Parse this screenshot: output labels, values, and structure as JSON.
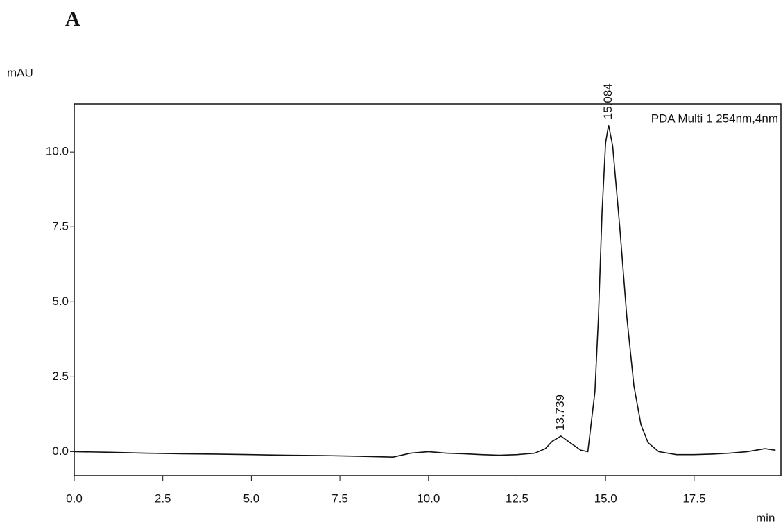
{
  "chart_data": {
    "type": "line",
    "title": "A",
    "y_label": "mAU",
    "x_label": "min",
    "x": [
      0,
      1,
      2,
      3,
      4,
      5,
      6,
      7,
      8,
      9,
      9.5,
      10,
      10.5,
      11,
      11.5,
      12,
      12.5,
      13,
      13.3,
      13.5,
      13.739,
      14,
      14.3,
      14.5,
      14.7,
      14.8,
      14.9,
      15.0,
      15.084,
      15.2,
      15.4,
      15.6,
      15.8,
      16.0,
      16.2,
      16.5,
      17,
      17.5,
      18,
      18.5,
      19,
      19.5,
      19.8
    ],
    "series": [
      {
        "name": "PDA Multi 1 254nm,4nm",
        "color": "#111111",
        "values": [
          0,
          -0.02,
          -0.05,
          -0.07,
          -0.08,
          -0.1,
          -0.12,
          -0.13,
          -0.15,
          -0.18,
          -0.05,
          0.0,
          -0.05,
          -0.07,
          -0.1,
          -0.12,
          -0.1,
          -0.05,
          0.1,
          0.35,
          0.52,
          0.3,
          0.05,
          0.0,
          2.0,
          4.5,
          8.0,
          10.3,
          10.9,
          10.2,
          7.5,
          4.5,
          2.2,
          0.9,
          0.3,
          0.0,
          -0.1,
          -0.1,
          -0.08,
          -0.05,
          0.0,
          0.1,
          0.05
        ]
      }
    ],
    "annotations": [
      {
        "text": "13.739",
        "x": 13.739,
        "y": 0.52
      },
      {
        "text": "15.084",
        "x": 15.084,
        "y": 10.9
      }
    ],
    "xlim": [
      0,
      19.95
    ],
    "ylim": [
      -0.8,
      11.6
    ],
    "xticks": [
      {
        "value": 0,
        "label": "0.0"
      },
      2.5,
      {
        "value": 5,
        "label": "5.0"
      },
      7.5,
      {
        "value": 10,
        "label": "10.0"
      },
      12.5,
      {
        "value": 15,
        "label": "15.0"
      },
      17.5
    ],
    "yticks": [
      {
        "value": 0,
        "label": "0.0"
      },
      2.5,
      {
        "value": 5,
        "label": "5.0"
      },
      7.5,
      {
        "value": 10,
        "label": "10.0"
      }
    ]
  }
}
